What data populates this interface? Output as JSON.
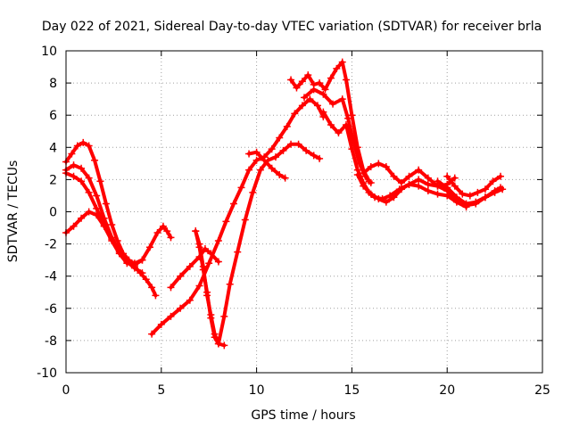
{
  "chart_data": {
    "type": "scatter",
    "title": "Day 022 of 2021, Sidereal Day-to-day VTEC variation (SDTVAR) for receiver brla",
    "xlabel": "GPS time / hours",
    "ylabel": "SDTVAR / TECUs",
    "xlim": [
      0,
      25
    ],
    "ylim": [
      -10,
      10
    ],
    "x_ticks": [
      "0",
      "5",
      "10",
      "15",
      "20",
      "25"
    ],
    "y_ticks": [
      "-10",
      "-8",
      "-6",
      "-4",
      "-2",
      "0",
      "2",
      "4",
      "6",
      "8",
      "10"
    ],
    "grid": true,
    "marker": "+",
    "color": "#ff0000",
    "series": [
      {
        "x": [
          0.0,
          0.3,
          0.6,
          0.9,
          1.2,
          1.5,
          1.8,
          2.1,
          2.4,
          2.7,
          3.0,
          3.3,
          3.6,
          3.9,
          4.2,
          4.5,
          4.7
        ],
        "y": [
          3.1,
          3.6,
          4.1,
          4.3,
          4.1,
          3.2,
          1.9,
          0.5,
          -0.8,
          -1.8,
          -2.6,
          -3.0,
          -3.4,
          -3.8,
          -4.2,
          -4.7,
          -5.2
        ]
      },
      {
        "x": [
          0.0,
          0.4,
          0.8,
          1.2,
          1.6,
          2.0,
          2.4,
          2.8,
          3.2,
          3.6,
          4.0
        ],
        "y": [
          2.6,
          2.9,
          2.7,
          2.1,
          1.0,
          -0.4,
          -1.6,
          -2.5,
          -3.1,
          -3.5,
          -3.8
        ]
      },
      {
        "x": [
          0.0,
          0.4,
          0.8,
          1.2,
          1.6,
          2.0,
          2.4,
          2.8,
          3.2,
          3.6,
          4.0,
          4.4,
          4.8,
          5.1,
          5.3,
          5.5
        ],
        "y": [
          2.4,
          2.2,
          1.9,
          1.2,
          0.2,
          -0.8,
          -1.7,
          -2.4,
          -3.0,
          -3.2,
          -3.0,
          -2.2,
          -1.3,
          -0.9,
          -1.2,
          -1.6
        ]
      },
      {
        "x": [
          0.0,
          0.4,
          0.8,
          1.2,
          1.6,
          2.0,
          2.4,
          2.8,
          3.2,
          3.6,
          4.0
        ],
        "y": [
          -1.3,
          -0.9,
          -0.4,
          0.0,
          -0.2,
          -0.9,
          -1.8,
          -2.6,
          -3.2,
          -3.3,
          -3.0
        ]
      },
      {
        "x": [
          4.5,
          5.0,
          5.5,
          6.0,
          6.5,
          7.0,
          7.5,
          8.0,
          8.4,
          8.8,
          9.2,
          9.6,
          10.0,
          10.4,
          10.8,
          11.2,
          11.6,
          12.0,
          12.4,
          12.8,
          13.2,
          13.5
        ],
        "y": [
          -7.6,
          -7.0,
          -6.5,
          -6.0,
          -5.5,
          -4.6,
          -3.2,
          -1.8,
          -0.6,
          0.5,
          1.5,
          2.6,
          3.2,
          3.4,
          3.9,
          4.6,
          5.3,
          6.1,
          6.6,
          7.0,
          6.6,
          5.9
        ]
      },
      {
        "x": [
          5.5,
          6.0,
          6.5,
          7.0,
          7.3,
          7.6,
          8.0
        ],
        "y": [
          -4.7,
          -4.0,
          -3.4,
          -2.8,
          -2.3,
          -2.6,
          -3.1
        ]
      },
      {
        "x": [
          6.8,
          7.0,
          7.2,
          7.4,
          7.6,
          7.8,
          8.0,
          8.3,
          8.6,
          9.0,
          9.4,
          9.8,
          10.2,
          10.6,
          11.0,
          11.4,
          11.8,
          12.2,
          12.6,
          13.0,
          13.3
        ],
        "y": [
          -1.2,
          -2.2,
          -3.6,
          -5.0,
          -6.6,
          -7.8,
          -8.2,
          -6.5,
          -4.5,
          -2.5,
          -0.5,
          1.2,
          2.6,
          3.2,
          3.4,
          3.8,
          4.2,
          4.2,
          3.8,
          3.5,
          3.3
        ]
      },
      {
        "x": [
          6.8,
          7.0,
          7.2,
          7.4,
          7.6,
          7.8,
          8.0,
          8.3
        ],
        "y": [
          -1.2,
          -2.0,
          -3.4,
          -5.2,
          -6.4,
          -7.6,
          -8.2,
          -8.3
        ]
      },
      {
        "x": [
          9.6,
          10.0,
          10.4,
          10.8,
          11.2,
          11.5
        ],
        "y": [
          3.6,
          3.7,
          3.2,
          2.7,
          2.3,
          2.1
        ]
      },
      {
        "x": [
          11.8,
          12.1,
          12.4,
          12.7,
          13.0,
          13.3,
          13.6,
          13.9,
          14.2,
          14.5,
          14.7,
          15.0,
          15.3,
          15.6,
          15.9
        ],
        "y": [
          8.2,
          7.7,
          8.1,
          8.5,
          7.9,
          8.0,
          7.6,
          8.3,
          8.9,
          9.3,
          8.2,
          6.0,
          4.0,
          2.6,
          1.9
        ]
      },
      {
        "x": [
          12.5,
          13.0,
          13.5,
          14.0,
          14.5,
          14.8,
          15.1,
          15.4,
          15.7,
          16.0
        ],
        "y": [
          7.1,
          7.6,
          7.3,
          6.7,
          7.0,
          5.8,
          4.3,
          3.0,
          2.2,
          1.8
        ]
      },
      {
        "x": [
          13.5,
          13.9,
          14.3,
          14.7,
          15.0,
          15.3,
          15.6,
          15.9,
          16.2,
          16.6,
          17.0,
          17.5,
          18.0,
          18.5,
          19.0,
          19.5,
          20.0,
          20.5,
          21.0,
          21.5,
          22.0,
          22.5,
          22.8
        ],
        "y": [
          6.2,
          5.4,
          4.9,
          5.4,
          3.9,
          2.6,
          1.8,
          1.2,
          0.9,
          0.8,
          1.0,
          1.4,
          1.7,
          2.0,
          1.7,
          1.6,
          1.3,
          0.7,
          0.4,
          0.5,
          0.9,
          1.3,
          1.5
        ]
      },
      {
        "x": [
          15.3,
          15.6,
          16.0,
          16.4,
          16.8,
          17.2,
          17.6,
          18.0,
          18.5,
          19.0,
          19.5,
          20.0,
          20.5,
          21.0
        ],
        "y": [
          2.3,
          1.6,
          1.1,
          0.8,
          0.6,
          0.9,
          1.4,
          1.7,
          1.6,
          1.3,
          1.1,
          1.0,
          0.6,
          0.3
        ]
      },
      {
        "x": [
          15.6,
          16.0,
          16.4,
          16.8,
          17.2,
          17.6,
          18.0,
          18.5,
          19.0,
          19.5,
          20.0,
          20.4
        ],
        "y": [
          2.4,
          2.8,
          3.0,
          2.8,
          2.2,
          1.8,
          2.2,
          2.6,
          2.1,
          1.6,
          1.7,
          2.1
        ]
      },
      {
        "x": [
          20.0,
          20.4,
          20.8,
          21.2,
          21.6,
          22.0,
          22.4,
          22.8
        ],
        "y": [
          2.2,
          1.6,
          1.1,
          1.0,
          1.2,
          1.4,
          1.9,
          2.2
        ]
      },
      {
        "x": [
          19.5,
          20.0,
          20.5,
          21.0,
          21.5,
          22.0,
          22.5,
          22.9
        ],
        "y": [
          1.9,
          1.5,
          0.9,
          0.5,
          0.6,
          0.9,
          1.2,
          1.4
        ]
      }
    ]
  }
}
